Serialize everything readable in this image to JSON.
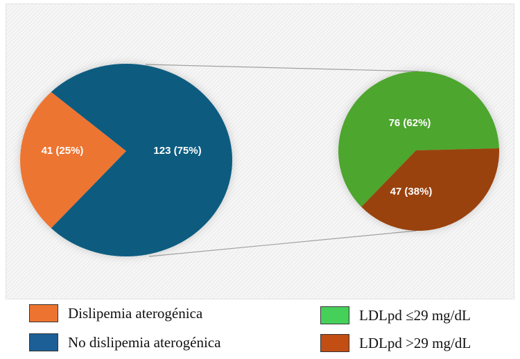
{
  "chart_data": {
    "type": "pie-of-pie",
    "primary": {
      "slices": [
        {
          "label": "Dislipemia aterogénica",
          "value": 41,
          "percent": 25,
          "data_label": "41 (25%)",
          "color": "#ED7430"
        },
        {
          "label": "No dislipemia aterogénica",
          "value": 123,
          "percent": 75,
          "data_label": "123 (75%)",
          "color": "#0B5C80"
        }
      ]
    },
    "secondary": {
      "breakdown_of": "No dislipemia aterogénica",
      "slices": [
        {
          "label": "LDLpd ≤29 mg/dL",
          "value": 76,
          "percent": 62,
          "data_label": "76 (62%)",
          "color": "#4EA62E"
        },
        {
          "label": "LDLpd >29 mg/dL",
          "value": 47,
          "percent": 38,
          "data_label": "47 (38%)",
          "color": "#9A4210"
        }
      ]
    },
    "legend": [
      {
        "label": "Dislipemia aterogénica",
        "color": "#ED7430"
      },
      {
        "label": "No dislipemia aterogénica",
        "color": "#1C5E96"
      },
      {
        "label": "LDLpd ≤29 mg/dL",
        "color": "#45D05A"
      },
      {
        "label": "LDLpd >29 mg/dL",
        "color": "#C24E14"
      }
    ],
    "legend_placement": "bottom"
  }
}
